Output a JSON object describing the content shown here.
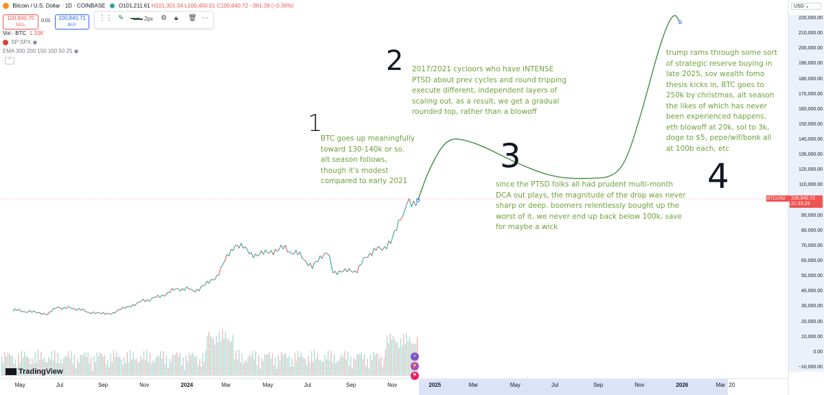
{
  "header": {
    "symbol_title": "Bitcoin / U.S. Dollar · 1D · COINBASE",
    "open": "O101,211.61",
    "high": "H101,301.34",
    "low": "L100,400.01",
    "close": "C100,840.72",
    "change": "−361.39 (−0.36%)"
  },
  "trade": {
    "sell_price": "100,840.70",
    "sell_label": "SELL",
    "spread": "0.01",
    "buy_price": "100,840.71",
    "buy_label": "BUY"
  },
  "toolbar": {
    "stroke_width": "2px"
  },
  "indicators": {
    "vol_label": "Vol · BTC",
    "vol_value": "1.33K",
    "spx_label": "SP:SPX",
    "ema_label": "EMA 300 200 150 100 50 25"
  },
  "price_axis": {
    "currency": "USD",
    "last_price_ticker": "BTCUSD",
    "last_price": "100,840.72",
    "countdown": "21:33:29"
  },
  "branding": {
    "logo_text": "TradingView"
  },
  "chart_data": {
    "type": "line",
    "y_axis_ticks": [
      "220,000.00",
      "210,000.00",
      "200,000.00",
      "190,000.00",
      "180,000.00",
      "170,000.00",
      "160,000.00",
      "150,000.00",
      "140,000.00",
      "130,000.00",
      "120,000.00",
      "110,000.00",
      "100,000.00",
      "90,000.00",
      "80,000.00",
      "70,000.00",
      "60,000.00",
      "50,000.00",
      "40,000.00",
      "30,000.00",
      "20,000.00",
      "10,000.00",
      "0.00",
      "−10,000.00"
    ],
    "x_axis_ticks": [
      "May",
      "Jul",
      "Sep",
      "Nov",
      "2024",
      "Mar",
      "May",
      "Jul",
      "Sep",
      "Nov",
      "2025",
      "Mar",
      "May",
      "Jul",
      "Sep",
      "Nov",
      "2026",
      "Mar",
      "20"
    ],
    "ylim": [
      -15000,
      225000
    ],
    "series": [
      {
        "x": [
          "2023-04-20",
          "2023-05-15",
          "2023-06-10",
          "2023-06-25",
          "2023-07-20",
          "2023-08-20",
          "2023-09-15",
          "2023-10-20",
          "2023-11-20",
          "2023-12-20",
          "2024-01-20",
          "2024-02-15",
          "2024-03-13",
          "2024-04-15",
          "2024-05-20",
          "2024-06-20",
          "2024-07-05",
          "2024-07-28",
          "2024-08-05",
          "2024-09-06",
          "2024-09-28",
          "2024-10-29",
          "2024-11-12",
          "2024-11-22",
          "2024-12-08"
        ],
        "values": [
          28500,
          27000,
          26000,
          30000,
          29500,
          26000,
          26500,
          33000,
          37000,
          42500,
          41500,
          51000,
          72000,
          64000,
          69500,
          64000,
          56000,
          68000,
          54000,
          53500,
          66000,
          72000,
          88000,
          98000,
          100840
        ]
      },
      {
        "x": [
          "2024-12-08",
          "2024-12-25",
          "2025-01-20",
          "2025-02-20",
          "2025-03-20",
          "2025-04-20",
          "2025-05-20",
          "2025-06-20",
          "2025-07-20",
          "2025-08-20",
          "2025-09-20",
          "2025-10-10",
          "2025-11-01",
          "2025-12-01",
          "2025-12-20",
          "2025-12-30"
        ],
        "values": [
          100840,
          122000,
          142000,
          140000,
          135000,
          128000,
          122000,
          117000,
          115000,
          115000,
          116000,
          125000,
          155000,
          205000,
          225000,
          218000
        ]
      }
    ],
    "volume_series_label": "Vol · BTC",
    "annotations": {
      "n1": "1",
      "n2": "2",
      "n3": "3",
      "n4": "4",
      "note1": "BTC goes up meaningfully\ntoward 130-140k or so.\nalt season follows,\nthough it's modest\ncompared to early 2021",
      "note2": "2017/2021 cycloors who have INTENSE\nPTSD about prev cycles and round tripping\nexecute different, independent layers of\nscaling out. as a result, we get a gradual\nrounded top, rather than a blowoff",
      "note3": "since the PTSD folks all had prudent multi-month\nDCA out plays, the magnitude of the drop was never\nsharp or deep. boomers relentlessly bought up the\nworst of it. we never end up back below 100k, save\nfor maybe a wick",
      "note4": "trump rams through some sort\nof strategic reserve buying in\nlate 2025, sov wealth fomo\nthesis kicks in, BTC goes to\n250k by christmas, alt season\nthe likes of which has never\nbeen experienced happens.\neth blowoff at 20k, sol to 3k,\ndoge to $5, pepe/wif/bonk all\nat 100b each, etc"
    }
  }
}
